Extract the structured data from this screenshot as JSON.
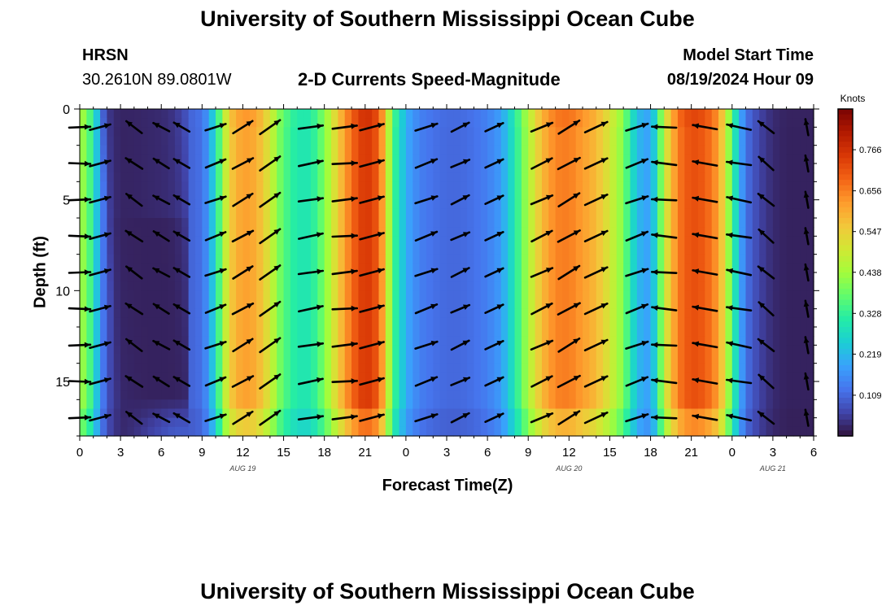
{
  "page": {
    "title": "University of Southern Mississippi Ocean Cube",
    "station": "HRSN",
    "coords": "30.2610N  89.0801W",
    "chart_title": "2-D Currents Speed-Magnitude",
    "model_label": "Model Start Time",
    "model_time": "08/19/2024 Hour 09",
    "footer_title": "University of Southern Mississippi Ocean Cube"
  },
  "chart_data": {
    "type": "heatmap",
    "title": "2-D Currents Speed-Magnitude",
    "xlabel": "Forecast Time(Z)",
    "ylabel": "Depth (ft)",
    "x_hours": [
      0,
      54
    ],
    "x_ticks": [
      "0",
      "3",
      "6",
      "9",
      "12",
      "15",
      "18",
      "21",
      "0",
      "3",
      "6",
      "9",
      "12",
      "15",
      "18",
      "21",
      "0",
      "3",
      "6"
    ],
    "date_labels": [
      {
        "text": "AUG 19",
        "hour": 12
      },
      {
        "text": "AUG 20",
        "hour": 36
      },
      {
        "text": "AUG 21",
        "hour": 51
      }
    ],
    "y_range": [
      0,
      18
    ],
    "y_ticks": [
      0,
      5,
      10,
      15
    ],
    "y_reversed": true,
    "colorbar": {
      "unit": "Knots",
      "range": [
        0,
        0.875
      ],
      "ticks": [
        "0.766",
        "0.656",
        "0.547",
        "0.438",
        "0.328",
        "0.219",
        "0.109"
      ],
      "tick_values": [
        0.766,
        0.656,
        0.547,
        0.438,
        0.328,
        0.219,
        0.109
      ],
      "colors": [
        "#30123b",
        "#4145ab",
        "#4675ed",
        "#39a2fc",
        "#1bcfd4",
        "#24eca6",
        "#61fc6c",
        "#a4fc3b",
        "#d1e834",
        "#f3c63a",
        "#fe9b2d",
        "#f36315",
        "#d93806",
        "#b11901",
        "#7a0403"
      ]
    },
    "speed_profile_hours": [
      0,
      0.5,
      1,
      1.5,
      2,
      3,
      4,
      5,
      6,
      7,
      8,
      9,
      9.5,
      10,
      10.5,
      11,
      12,
      13,
      14,
      14.5,
      15,
      16,
      17,
      18,
      19,
      20,
      21,
      22,
      22.5,
      23,
      24,
      25,
      26,
      27,
      28,
      29,
      30,
      31,
      32,
      33,
      34,
      35,
      36,
      37,
      38,
      39,
      40,
      41,
      42,
      42.5,
      43,
      44,
      45,
      46,
      47,
      47.5,
      48,
      48.5,
      49,
      50,
      51,
      52,
      53,
      54
    ],
    "speed_profile_knots": [
      0.44,
      0.4,
      0.3,
      0.17,
      0.08,
      0.03,
      0.04,
      0.06,
      0.08,
      0.1,
      0.1,
      0.12,
      0.18,
      0.28,
      0.42,
      0.55,
      0.62,
      0.6,
      0.5,
      0.42,
      0.36,
      0.3,
      0.3,
      0.4,
      0.55,
      0.68,
      0.76,
      0.7,
      0.55,
      0.36,
      0.2,
      0.14,
      0.12,
      0.11,
      0.11,
      0.12,
      0.14,
      0.18,
      0.3,
      0.45,
      0.58,
      0.65,
      0.66,
      0.62,
      0.58,
      0.5,
      0.4,
      0.22,
      0.18,
      0.3,
      0.48,
      0.66,
      0.72,
      0.7,
      0.62,
      0.5,
      0.35,
      0.22,
      0.12,
      0.06,
      0.03,
      0.02,
      0.02,
      0.02
    ],
    "low_core": {
      "hour": [
        2,
        7.5
      ],
      "depth": [
        0,
        16
      ],
      "min_knots": 0.02
    },
    "arrow_hours": [
      0,
      1.5,
      4,
      6,
      7.5,
      10,
      12,
      14,
      17,
      19.5,
      21.5,
      25.5,
      28,
      30.5,
      34,
      36,
      38,
      41,
      43,
      46,
      48.5,
      50.5,
      53.5
    ],
    "arrow_depths": [
      1,
      3,
      5,
      7,
      9,
      11,
      13,
      15,
      17
    ],
    "arrow_dir_deg": [
      0,
      15,
      145,
      150,
      150,
      20,
      30,
      35,
      10,
      5,
      15,
      20,
      25,
      25,
      25,
      30,
      25,
      20,
      175,
      170,
      170,
      140,
      100
    ],
    "arrow_len_px": [
      26,
      26,
      24,
      22,
      22,
      26,
      28,
      30,
      30,
      30,
      30,
      28,
      24,
      24,
      28,
      30,
      30,
      28,
      30,
      30,
      30,
      24,
      20
    ]
  }
}
